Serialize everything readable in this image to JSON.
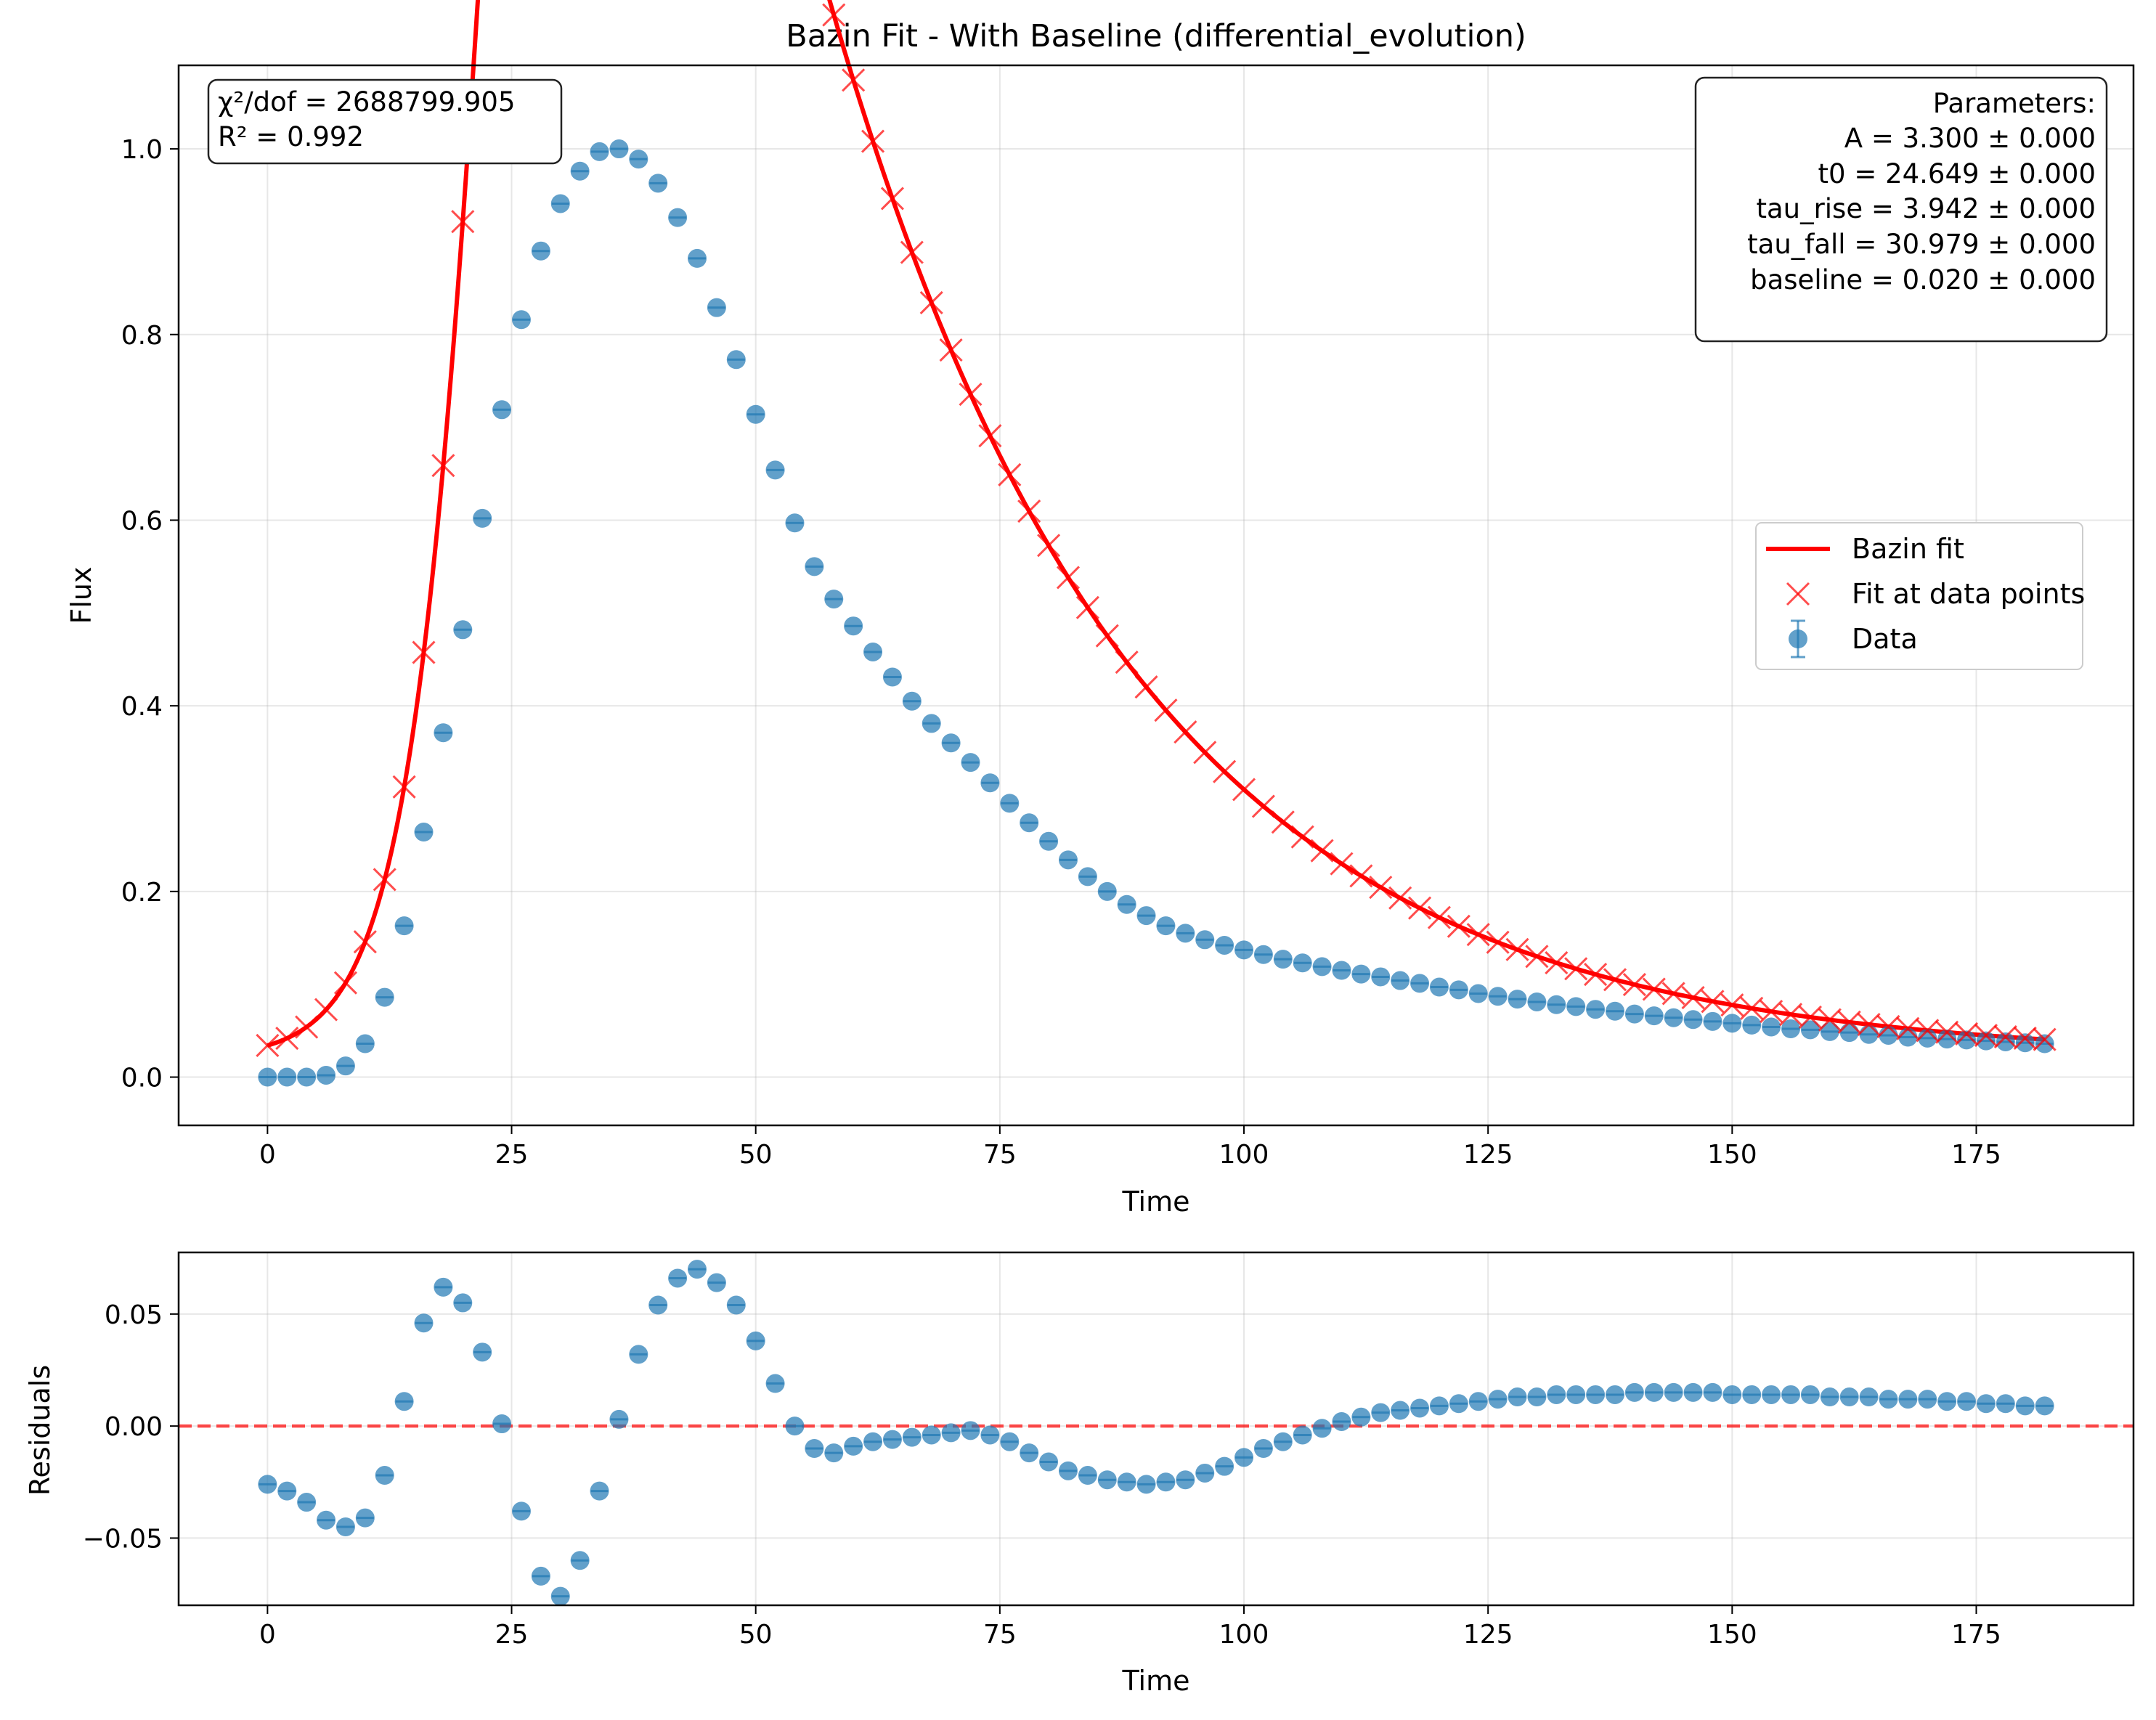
{
  "chart_data": [
    {
      "type": "scatter",
      "title": "Bazin Fit - With Baseline (differential_evolution)",
      "xlabel": "Time",
      "ylabel": "Flux",
      "xlim": [
        -9.1,
        191.1
      ],
      "ylim": [
        -0.052,
        1.09
      ],
      "xticks": [
        0,
        25,
        50,
        75,
        100,
        125,
        150,
        175
      ],
      "yticks": [
        0.0,
        0.2,
        0.4,
        0.6,
        0.8,
        1.0
      ],
      "xtick_labels": [
        "0",
        "25",
        "50",
        "75",
        "100",
        "125",
        "150",
        "175"
      ],
      "ytick_labels": [
        "0.0",
        "0.2",
        "0.4",
        "0.6",
        "0.8",
        "1.0"
      ],
      "grid": true,
      "legend": {
        "position": "center-right",
        "entries": [
          "Bazin fit",
          "Fit at data points",
          "Data"
        ]
      },
      "stats_text": [
        "χ²/dof = 2688799.905",
        "R² = 0.992"
      ],
      "params_text": [
        "Parameters:",
        "A = 3.300 ± 0.000",
        "t0 = 24.649 ± 0.000",
        "tau_rise = 3.942 ± 0.000",
        "tau_fall = 30.979 ± 0.000",
        "baseline = 0.020 ± 0.000"
      ],
      "model": {
        "A": 3.3,
        "t0": 24.649,
        "tau_rise": 3.942,
        "tau_fall": 30.979,
        "baseline": 0.02
      },
      "data_x": [
        0,
        2,
        4,
        6,
        8,
        10,
        12,
        14,
        16,
        18,
        20,
        22,
        24,
        26,
        28,
        30,
        32,
        34,
        36,
        38,
        40,
        42,
        44,
        46,
        48,
        50,
        52,
        54,
        56,
        58,
        60,
        62,
        64,
        66,
        68,
        70,
        72,
        74,
        76,
        78,
        80,
        82,
        84,
        86,
        88,
        90,
        92,
        94,
        96,
        98,
        100,
        102,
        104,
        106,
        108,
        110,
        112,
        114,
        116,
        118,
        120,
        122,
        124,
        126,
        128,
        130,
        132,
        134,
        136,
        138,
        140,
        142,
        144,
        146,
        148,
        150,
        152,
        154,
        156,
        158,
        160,
        162,
        164,
        166,
        168,
        170,
        172,
        174,
        176,
        178,
        180,
        182
      ],
      "data_y": [
        0.0,
        0.0,
        0.0,
        0.002,
        0.012,
        0.036,
        0.086,
        0.163,
        0.264,
        0.371,
        0.482,
        0.602,
        0.719,
        0.816,
        0.89,
        0.941,
        0.976,
        0.997,
        1.0,
        0.989,
        0.963,
        0.926,
        0.882,
        0.829,
        0.773,
        0.714,
        0.654,
        0.597,
        0.55,
        0.515,
        0.486,
        0.458,
        0.431,
        0.405,
        0.381,
        0.36,
        0.339,
        0.317,
        0.295,
        0.274,
        0.254,
        0.234,
        0.216,
        0.2,
        0.186,
        0.174,
        0.163,
        0.155,
        0.148,
        0.142,
        0.137,
        0.132,
        0.127,
        0.123,
        0.119,
        0.115,
        0.111,
        0.108,
        0.104,
        0.101,
        0.097,
        0.094,
        0.09,
        0.087,
        0.084,
        0.081,
        0.078,
        0.076,
        0.073,
        0.071,
        0.068,
        0.066,
        0.064,
        0.062,
        0.06,
        0.058,
        0.056,
        0.054,
        0.052,
        0.051,
        0.049,
        0.048,
        0.046,
        0.045,
        0.043,
        0.042,
        0.041,
        0.04,
        0.039,
        0.038,
        0.037,
        0.036
      ]
    },
    {
      "type": "scatter",
      "xlabel": "Time",
      "ylabel": "Residuals",
      "xlim": [
        -9.1,
        191.1
      ],
      "ylim": [
        -0.08,
        0.0775
      ],
      "xticks": [
        0,
        25,
        50,
        75,
        100,
        125,
        150,
        175
      ],
      "yticks": [
        -0.05,
        0.0,
        0.05
      ],
      "xtick_labels": [
        "0",
        "25",
        "50",
        "75",
        "100",
        "125",
        "150",
        "175"
      ],
      "ytick_labels": [
        "−0.05",
        "0.00",
        "0.05"
      ],
      "grid": true,
      "reference_line_y": 0.0,
      "residual_x": [
        0,
        2,
        4,
        6,
        8,
        10,
        12,
        14,
        16,
        18,
        20,
        22,
        24,
        26,
        28,
        30,
        32,
        34,
        36,
        38,
        40,
        42,
        44,
        46,
        48,
        50,
        52,
        54,
        56,
        58,
        60,
        62,
        64,
        66,
        68,
        70,
        72,
        74,
        76,
        78,
        80,
        82,
        84,
        86,
        88,
        90,
        92,
        94,
        96,
        98,
        100,
        102,
        104,
        106,
        108,
        110,
        112,
        114,
        116,
        118,
        120,
        122,
        124,
        126,
        128,
        130,
        132,
        134,
        136,
        138,
        140,
        142,
        144,
        146,
        148,
        150,
        152,
        154,
        156,
        158,
        160,
        162,
        164,
        166,
        168,
        170,
        172,
        174,
        176,
        178,
        180,
        182
      ],
      "residual_y": [
        -0.026,
        -0.029,
        -0.034,
        -0.042,
        -0.045,
        -0.041,
        -0.022,
        0.011,
        0.046,
        0.062,
        0.055,
        0.033,
        0.001,
        -0.038,
        -0.067,
        -0.076,
        -0.06,
        -0.029,
        0.003,
        0.032,
        0.054,
        0.066,
        0.07,
        0.064,
        0.054,
        0.038,
        0.019,
        0.0,
        -0.01,
        -0.012,
        -0.009,
        -0.007,
        -0.006,
        -0.005,
        -0.004,
        -0.003,
        -0.002,
        -0.004,
        -0.007,
        -0.012,
        -0.016,
        -0.02,
        -0.022,
        -0.024,
        -0.025,
        -0.026,
        -0.025,
        -0.024,
        -0.021,
        -0.018,
        -0.014,
        -0.01,
        -0.007,
        -0.004,
        -0.001,
        0.002,
        0.004,
        0.006,
        0.007,
        0.008,
        0.009,
        0.01,
        0.011,
        0.012,
        0.013,
        0.013,
        0.014,
        0.014,
        0.014,
        0.014,
        0.015,
        0.015,
        0.015,
        0.015,
        0.015,
        0.014,
        0.014,
        0.014,
        0.014,
        0.014,
        0.013,
        0.013,
        0.013,
        0.012,
        0.012,
        0.012,
        0.011,
        0.011,
        0.01,
        0.01,
        0.009,
        0.009
      ]
    }
  ]
}
